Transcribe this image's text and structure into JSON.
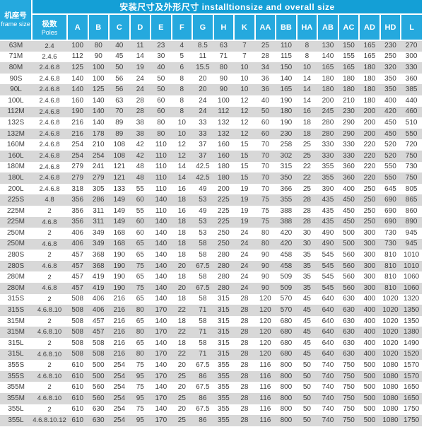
{
  "table": {
    "title": "安装尺寸及外形尺寸 installtionsize and overall size",
    "frame_header": {
      "cn": "机座号",
      "en": "frame size"
    },
    "poles_header": {
      "cn": "极数",
      "en": "Poles"
    },
    "columns": [
      "A",
      "B",
      "C",
      "D",
      "E",
      "F",
      "G",
      "H",
      "K",
      "AA",
      "BB",
      "HA",
      "AB",
      "AC",
      "AD",
      "HD",
      "L"
    ],
    "rows": [
      {
        "frame": "63M",
        "poles": "2.4",
        "dims": [
          100,
          80,
          40,
          11,
          23,
          4,
          8.5,
          63,
          7,
          25,
          110,
          8,
          130,
          150,
          165,
          230,
          270
        ]
      },
      {
        "frame": "71M",
        "poles": "2.4.6",
        "dims": [
          112,
          90,
          45,
          14,
          30,
          5,
          11,
          71,
          7,
          28,
          115,
          8,
          140,
          155,
          165,
          250,
          300
        ]
      },
      {
        "frame": "80M",
        "poles": "2.4.6.8",
        "dims": [
          125,
          100,
          50,
          19,
          40,
          6,
          15.5,
          80,
          10,
          34,
          150,
          10,
          165,
          165,
          180,
          320,
          330
        ]
      },
      {
        "frame": "90S",
        "poles": "2.4.6.8",
        "dims": [
          140,
          100,
          56,
          24,
          50,
          8,
          20,
          90,
          10,
          36,
          140,
          14,
          180,
          180,
          180,
          350,
          360
        ]
      },
      {
        "frame": "90L",
        "poles": "2.4.6.8",
        "dims": [
          140,
          125,
          56,
          24,
          50,
          8,
          20,
          90,
          10,
          36,
          165,
          14,
          180,
          180,
          180,
          350,
          385
        ]
      },
      {
        "frame": "100L",
        "poles": "2.4.6.8",
        "dims": [
          160,
          140,
          63,
          28,
          60,
          8,
          24,
          100,
          12,
          40,
          190,
          14,
          200,
          210,
          180,
          400,
          440
        ]
      },
      {
        "frame": "112M",
        "poles": "2.4.6.8",
        "dims": [
          190,
          140,
          70,
          28,
          60,
          8,
          24,
          112,
          12,
          50,
          180,
          16,
          245,
          230,
          200,
          420,
          460
        ]
      },
      {
        "frame": "132S",
        "poles": "2.4.6.8",
        "dims": [
          216,
          140,
          89,
          38,
          80,
          10,
          33,
          132,
          12,
          60,
          190,
          18,
          280,
          290,
          200,
          450,
          510
        ]
      },
      {
        "frame": "132M",
        "poles": "2.4.6.8",
        "dims": [
          216,
          178,
          89,
          38,
          80,
          10,
          33,
          132,
          12,
          60,
          230,
          18,
          280,
          290,
          200,
          450,
          550
        ]
      },
      {
        "frame": "160M",
        "poles": "2.4.6.8",
        "dims": [
          254,
          210,
          108,
          42,
          110,
          12,
          37,
          160,
          15,
          70,
          258,
          25,
          330,
          330,
          220,
          520,
          720
        ]
      },
      {
        "frame": "160L",
        "poles": "2.4.6.8",
        "dims": [
          254,
          254,
          108,
          42,
          110,
          12,
          37,
          160,
          15,
          70,
          302,
          25,
          330,
          330,
          220,
          520,
          750
        ]
      },
      {
        "frame": "180M",
        "poles": "2.4.6.8",
        "dims": [
          279,
          241,
          121,
          48,
          110,
          14,
          42.5,
          180,
          15,
          70,
          315,
          22,
          355,
          360,
          220,
          550,
          730
        ]
      },
      {
        "frame": "180L",
        "poles": "2.4.6.8",
        "dims": [
          279,
          279,
          121,
          48,
          110,
          14,
          42.5,
          180,
          15,
          70,
          350,
          22,
          355,
          360,
          220,
          550,
          750
        ]
      },
      {
        "frame": "200L",
        "poles": "2.4.6.8",
        "dims": [
          318,
          305,
          133,
          55,
          110,
          16,
          49,
          200,
          19,
          70,
          366,
          25,
          390,
          400,
          250,
          645,
          805
        ]
      },
      {
        "frame": "225S",
        "poles": "4.8",
        "dims": [
          356,
          286,
          149,
          60,
          140,
          18,
          53,
          225,
          19,
          75,
          355,
          28,
          435,
          450,
          250,
          690,
          865
        ]
      },
      {
        "frame": "225M",
        "poles": "2",
        "dims": [
          356,
          311,
          149,
          55,
          110,
          16,
          49,
          225,
          19,
          75,
          388,
          28,
          435,
          450,
          250,
          690,
          860
        ]
      },
      {
        "frame": "225M",
        "poles": "4.6.8",
        "dims": [
          356,
          311,
          149,
          60,
          140,
          18,
          53,
          225,
          19,
          75,
          388,
          28,
          435,
          450,
          250,
          690,
          890
        ]
      },
      {
        "frame": "250M",
        "poles": "2",
        "dims": [
          406,
          349,
          168,
          60,
          140,
          18,
          53,
          250,
          24,
          80,
          420,
          30,
          490,
          500,
          300,
          730,
          945
        ]
      },
      {
        "frame": "250M",
        "poles": "4.6.8",
        "dims": [
          406,
          349,
          168,
          65,
          140,
          18,
          58,
          250,
          24,
          80,
          420,
          30,
          490,
          500,
          300,
          730,
          945
        ]
      },
      {
        "frame": "280S",
        "poles": "2",
        "dims": [
          457,
          368,
          190,
          65,
          140,
          18,
          58,
          280,
          24,
          90,
          458,
          35,
          545,
          560,
          300,
          810,
          1010
        ]
      },
      {
        "frame": "280S",
        "poles": "4.6.8",
        "dims": [
          457,
          368,
          190,
          75,
          140,
          20,
          67.5,
          280,
          24,
          90,
          458,
          35,
          545,
          560,
          300,
          810,
          1010
        ]
      },
      {
        "frame": "280M",
        "poles": "2",
        "dims": [
          457,
          419,
          190,
          65,
          140,
          18,
          58,
          280,
          24,
          90,
          509,
          35,
          545,
          560,
          300,
          810,
          1060
        ]
      },
      {
        "frame": "280M",
        "poles": "4.6.8",
        "dims": [
          457,
          419,
          190,
          75,
          140,
          20,
          67.5,
          280,
          24,
          90,
          509,
          35,
          545,
          560,
          300,
          810,
          1060
        ]
      },
      {
        "frame": "315S",
        "poles": "2",
        "dims": [
          508,
          406,
          216,
          65,
          140,
          18,
          58,
          315,
          28,
          120,
          570,
          45,
          640,
          630,
          400,
          1020,
          1320
        ]
      },
      {
        "frame": "315S",
        "poles": "4.6.8.10",
        "dims": [
          508,
          406,
          216,
          80,
          170,
          22,
          71,
          315,
          28,
          120,
          570,
          45,
          640,
          630,
          400,
          1020,
          1350
        ]
      },
      {
        "frame": "315M",
        "poles": "2",
        "dims": [
          508,
          457,
          216,
          65,
          140,
          18,
          58,
          315,
          28,
          120,
          680,
          45,
          640,
          630,
          400,
          1020,
          1350
        ]
      },
      {
        "frame": "315M",
        "poles": "4.6.8.10",
        "dims": [
          508,
          457,
          216,
          80,
          170,
          22,
          71,
          315,
          28,
          120,
          680,
          45,
          640,
          630,
          400,
          1020,
          1380
        ]
      },
      {
        "frame": "315L",
        "poles": "2",
        "dims": [
          508,
          508,
          216,
          65,
          140,
          18,
          58,
          315,
          28,
          120,
          680,
          45,
          640,
          630,
          400,
          1020,
          1490
        ]
      },
      {
        "frame": "315L",
        "poles": "4.6.8.10",
        "dims": [
          508,
          508,
          216,
          80,
          170,
          22,
          71,
          315,
          28,
          120,
          680,
          45,
          640,
          630,
          400,
          1020,
          1520
        ]
      },
      {
        "frame": "355S",
        "poles": "2",
        "dims": [
          610,
          500,
          254,
          75,
          140,
          20,
          67.5,
          355,
          28,
          116,
          800,
          50,
          740,
          750,
          500,
          1080,
          1570
        ]
      },
      {
        "frame": "355S",
        "poles": "4.6.8.10",
        "dims": [
          610,
          500,
          254,
          95,
          170,
          25,
          86,
          355,
          28,
          116,
          800,
          50,
          740,
          750,
          500,
          1080,
          1570
        ]
      },
      {
        "frame": "355M",
        "poles": "2",
        "dims": [
          610,
          560,
          254,
          75,
          140,
          20,
          67.5,
          355,
          28,
          116,
          800,
          50,
          740,
          750,
          500,
          1080,
          1650
        ]
      },
      {
        "frame": "355M",
        "poles": "4.6.8.10",
        "dims": [
          610,
          560,
          254,
          95,
          170,
          25,
          86,
          355,
          28,
          116,
          800,
          50,
          740,
          750,
          500,
          1080,
          1650
        ]
      },
      {
        "frame": "355L",
        "poles": "2",
        "dims": [
          610,
          630,
          254,
          75,
          140,
          20,
          67.5,
          355,
          28,
          116,
          800,
          50,
          740,
          750,
          500,
          1080,
          1750
        ]
      },
      {
        "frame": "355L",
        "poles": "4.6.8.10.12",
        "dims": [
          610,
          630,
          254,
          95,
          170,
          25,
          86,
          355,
          28,
          116,
          800,
          50,
          740,
          750,
          500,
          1080,
          1750
        ]
      }
    ]
  },
  "colors": {
    "title_blue": "#149fd6",
    "header_blue": "#25a9de",
    "row_gray": "#d8d8d8",
    "row_white": "#ffffff",
    "text_dark": "#3e3e3e",
    "header_text": "#ffffff"
  }
}
